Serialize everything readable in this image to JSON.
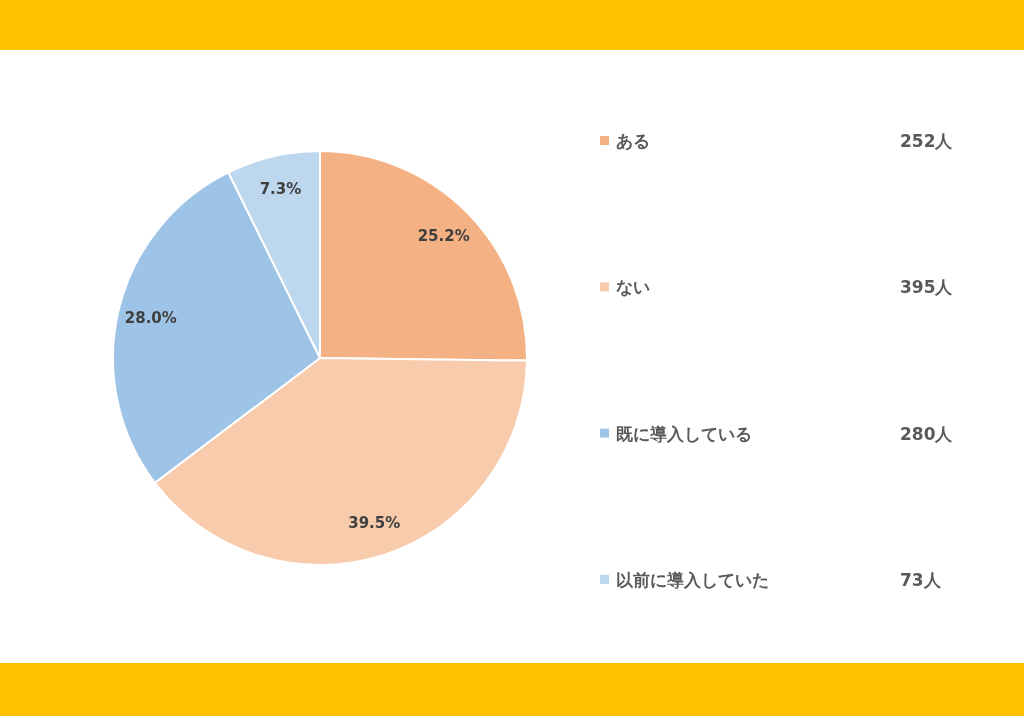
{
  "chart_data": {
    "type": "pie",
    "categories": [
      "ある",
      "ない",
      "既に導入している",
      "以前に導入していた"
    ],
    "values": [
      25.2,
      39.5,
      28.0,
      7.3
    ],
    "colors": [
      "#f4b183",
      "#f8cbad",
      "#9dc3e6",
      "#bdd7ee"
    ],
    "value_labels": [
      "25.2%",
      "39.5%",
      "28.0%",
      "7.3%"
    ],
    "annotations": [
      "252人",
      "395人",
      "280人",
      "73人"
    ],
    "legend": "right"
  }
}
